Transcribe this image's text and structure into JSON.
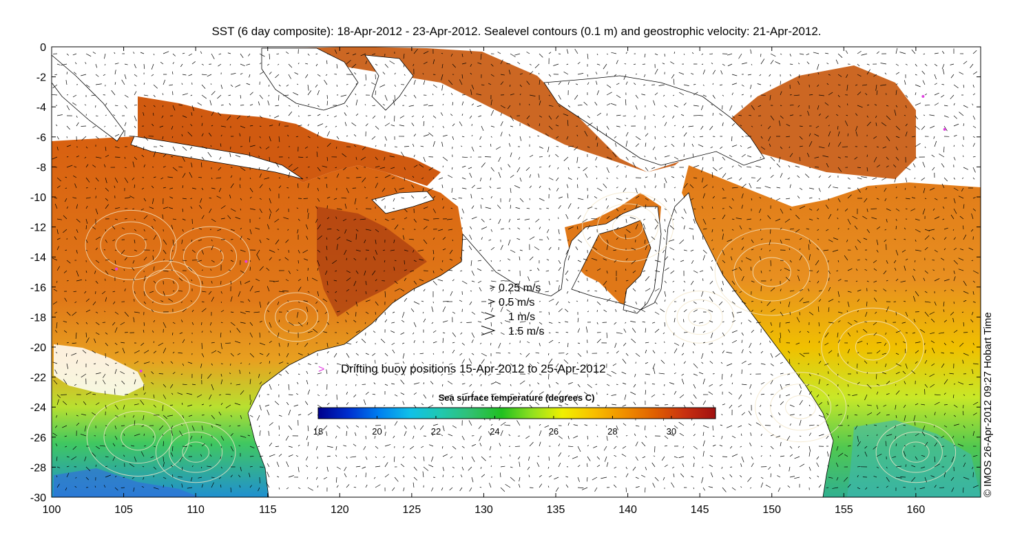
{
  "title": "SST (6 day composite): 18-Apr-2012 - 23-Apr-2012. Sealevel contours (0.1 m) and geostrophic velocity: 21-Apr-2012.",
  "credit": "© IMOS 26-Apr-2012 09:27 Hobart Time",
  "map": {
    "lon_range": [
      100,
      164.5
    ],
    "lat_range": [
      -30,
      0
    ],
    "x_ticks": [
      100,
      105,
      110,
      115,
      120,
      125,
      130,
      135,
      140,
      145,
      150,
      155,
      160
    ],
    "y_ticks": [
      0,
      -2,
      -4,
      -6,
      -8,
      -10,
      -12,
      -14,
      -16,
      -18,
      -20,
      -22,
      -24,
      -26,
      -28,
      -30
    ],
    "land_color": "#ffffff",
    "contour_color": "#f2e6c8",
    "arrow_color": "#000000"
  },
  "velocity_legend": [
    {
      "speed": 0.25,
      "label": "0.25 m/s"
    },
    {
      "speed": 0.5,
      "label": "0.5 m/s"
    },
    {
      "speed": 1,
      "label": "1 m/s"
    },
    {
      "speed": 1.5,
      "label": "1.5 m/s"
    }
  ],
  "buoy_legend": {
    "label": "Drifting buoy positions 15-Apr-2012 to 25-Apr-2012",
    "color": "#e040e0",
    "positions": [
      [
        104.5,
        -14.8
      ],
      [
        106.2,
        -21.6
      ],
      [
        160.5,
        -3.3
      ],
      [
        162.0,
        -5.5
      ],
      [
        113.5,
        -14.3
      ]
    ]
  },
  "colorbar": {
    "title": "Sea surface temperature (degrees C)",
    "min": 18,
    "max": 31.5,
    "ticks": [
      18,
      20,
      22,
      24,
      26,
      28,
      30
    ],
    "colormap": [
      "#00008c",
      "#0030d0",
      "#0080f0",
      "#10c0e8",
      "#20c8b0",
      "#30c070",
      "#20c020",
      "#90e020",
      "#f0f000",
      "#f8c000",
      "#f09000",
      "#e06000",
      "#c83010",
      "#a01010"
    ]
  }
}
